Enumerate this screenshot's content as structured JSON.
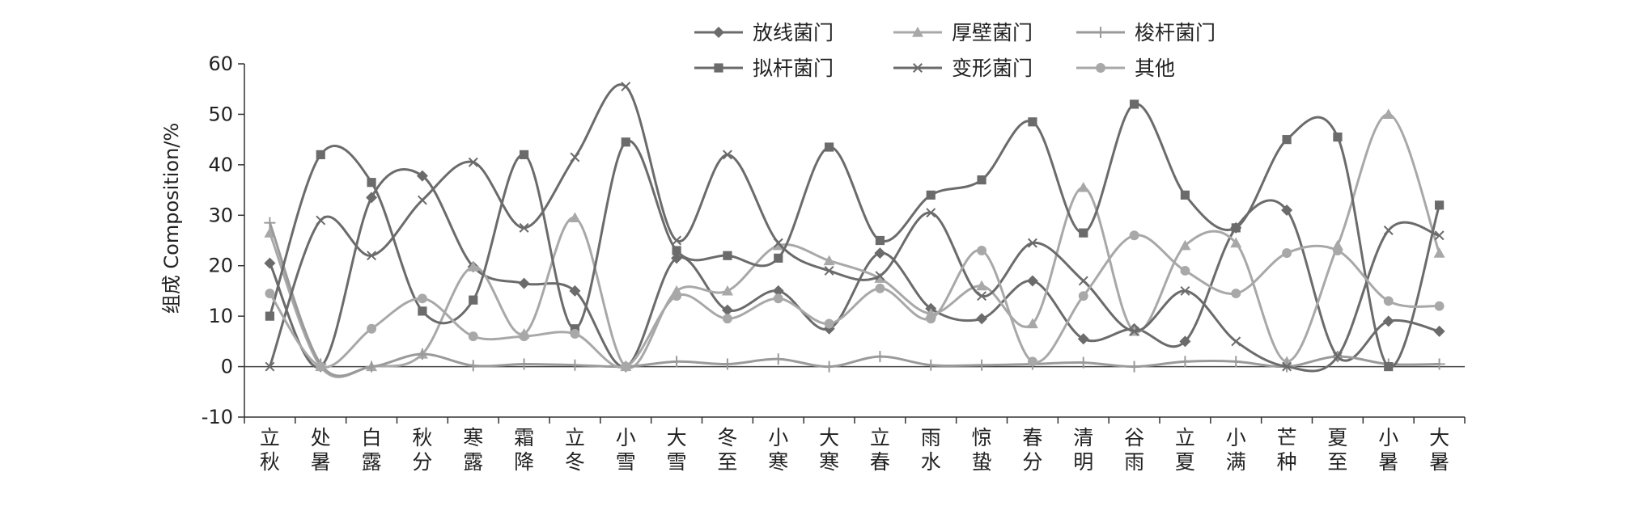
{
  "chart_data": {
    "type": "line",
    "title": "",
    "xlabel": "",
    "ylabel": "组成 Composition/%",
    "ylim": [
      -10,
      60
    ],
    "yticks": [
      -10,
      0,
      10,
      20,
      30,
      40,
      50,
      60
    ],
    "grid": false,
    "legend_position": "top",
    "categories": [
      "立秋",
      "处暑",
      "白露",
      "秋分",
      "寒露",
      "霜降",
      "立冬",
      "小雪",
      "大雪",
      "冬至",
      "小寒",
      "大寒",
      "立春",
      "雨水",
      "惊蛰",
      "春分",
      "清明",
      "谷雨",
      "立夏",
      "小满",
      "芒种",
      "夏至",
      "小暑",
      "大暑"
    ],
    "series": [
      {
        "name": "放线菌门",
        "marker": "diamond",
        "color": "#6b6b6b",
        "values": [
          20.5,
          0,
          33.5,
          37.8,
          19.8,
          16.5,
          15,
          0,
          21.5,
          11.2,
          15,
          7.5,
          22.5,
          11.5,
          9.5,
          17,
          5.5,
          7.5,
          5,
          27.5,
          31,
          2,
          9,
          7
        ]
      },
      {
        "name": "厚壁菌门",
        "marker": "triangle",
        "color": "#a8a8a8",
        "values": [
          26.5,
          0,
          0,
          2.5,
          19.8,
          6.5,
          29.5,
          0,
          15,
          15,
          24,
          21,
          17.5,
          10.5,
          16,
          8.5,
          35.5,
          7,
          24,
          24.5,
          1,
          24,
          50,
          22.5
        ]
      },
      {
        "name": "梭杆菌门",
        "marker": "plus",
        "color": "#9a9a9a",
        "values": [
          28.5,
          0.5,
          0,
          2.5,
          0.2,
          0.5,
          0.3,
          0,
          1,
          0.5,
          1.5,
          0,
          2,
          0.3,
          0.3,
          0.5,
          0.8,
          0,
          1,
          1,
          0,
          2,
          0.5,
          0.5
        ]
      },
      {
        "name": "拟杆菌门",
        "marker": "square",
        "color": "#6b6b6b",
        "values": [
          10,
          42,
          36.5,
          11,
          13.2,
          42,
          7.5,
          44.5,
          23,
          22,
          21.5,
          43.5,
          25,
          34,
          37,
          48.5,
          26.5,
          52,
          34,
          27.5,
          45,
          45.5,
          0,
          32
        ]
      },
      {
        "name": "变形菌门",
        "marker": "x",
        "color": "#6b6b6b",
        "values": [
          0,
          29,
          22,
          33,
          40.5,
          27.5,
          41.5,
          55.5,
          25,
          42,
          24.5,
          19,
          18,
          30.5,
          14,
          24.5,
          17,
          7,
          15,
          5,
          0,
          2,
          27,
          26
        ]
      },
      {
        "name": "其他",
        "marker": "circle",
        "color": "#a8a8a8",
        "values": [
          14.5,
          0,
          7.5,
          13.5,
          6,
          6,
          6.5,
          0,
          14,
          9.5,
          13.5,
          8.5,
          15.5,
          9.5,
          23,
          1,
          14,
          26,
          19,
          14.5,
          22.5,
          23,
          13,
          12
        ]
      }
    ]
  }
}
